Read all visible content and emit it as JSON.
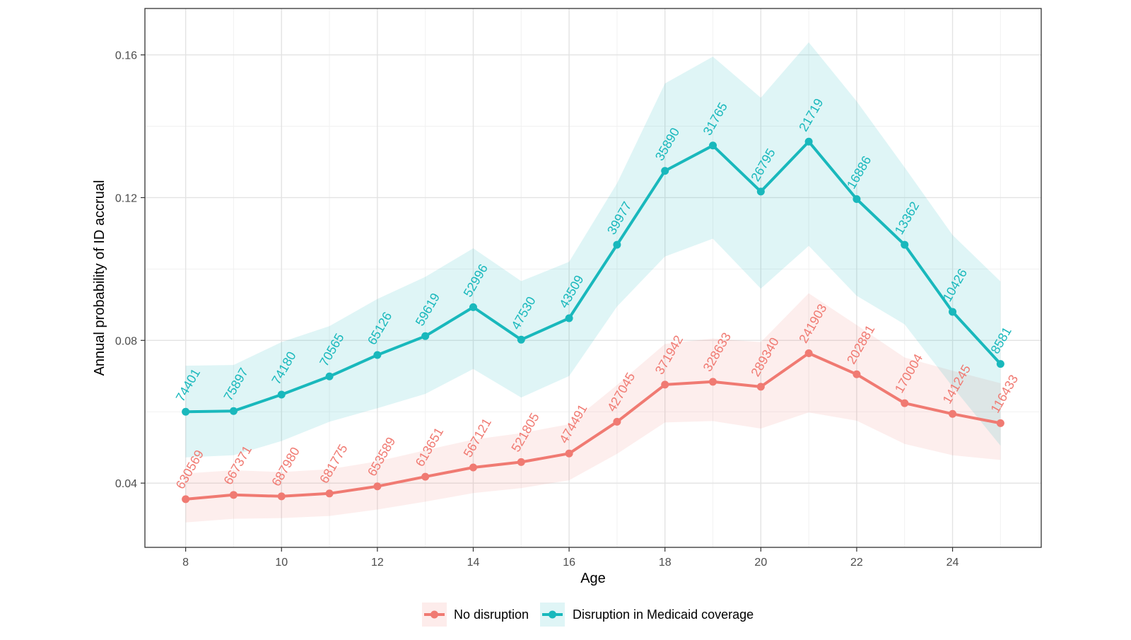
{
  "chart_data": {
    "type": "line",
    "xlabel": "Age",
    "ylabel": "Annual probability of ID accrual",
    "xlim": [
      7.15,
      25.85
    ],
    "ylim": [
      0.022,
      0.173
    ],
    "x_ticks": [
      "8",
      "10",
      "12",
      "14",
      "16",
      "18",
      "20",
      "22",
      "24"
    ],
    "x_tick_values": [
      8,
      10,
      12,
      14,
      16,
      18,
      20,
      22,
      24
    ],
    "y_ticks": [
      "0.04",
      "0.08",
      "0.12",
      "0.16"
    ],
    "y_tick_values": [
      0.04,
      0.08,
      0.12,
      0.16
    ],
    "grid": true,
    "legend_position": "bottom",
    "x": [
      8,
      9,
      10,
      11,
      12,
      13,
      14,
      15,
      16,
      17,
      18,
      19,
      20,
      21,
      22,
      23,
      24,
      25
    ],
    "series": [
      {
        "name": "No disruption",
        "color": "#F07A72",
        "values": [
          0.0355,
          0.0367,
          0.0363,
          0.0371,
          0.0391,
          0.0418,
          0.0444,
          0.0459,
          0.0483,
          0.0572,
          0.0676,
          0.0684,
          0.067,
          0.0764,
          0.0705,
          0.0624,
          0.0594,
          0.0568
        ],
        "lower": [
          0.029,
          0.03,
          0.0302,
          0.0308,
          0.0326,
          0.0348,
          0.0372,
          0.0386,
          0.0408,
          0.0482,
          0.057,
          0.0574,
          0.0553,
          0.0598,
          0.0575,
          0.051,
          0.0478,
          0.0465
        ],
        "upper": [
          0.0427,
          0.0436,
          0.0431,
          0.0439,
          0.0461,
          0.0492,
          0.0522,
          0.054,
          0.0565,
          0.0675,
          0.079,
          0.0805,
          0.0795,
          0.0932,
          0.0843,
          0.0752,
          0.0715,
          0.068
        ],
        "labels": [
          "630569",
          "667371",
          "687980",
          "681775",
          "653589",
          "613651",
          "567121",
          "521805",
          "474491",
          "427045",
          "371942",
          "328633",
          "289340",
          "241903",
          "202881",
          "170004",
          "141245",
          "116433"
        ]
      },
      {
        "name": "Disruption in Medicaid coverage",
        "color": "#19B8BC",
        "values": [
          0.06,
          0.0602,
          0.0648,
          0.0699,
          0.0759,
          0.0812,
          0.0893,
          0.0802,
          0.0862,
          0.1068,
          0.1275,
          0.1346,
          0.1217,
          0.1357,
          0.1196,
          0.1068,
          0.088,
          0.0734
        ],
        "lower": [
          0.0472,
          0.0478,
          0.0518,
          0.0572,
          0.061,
          0.065,
          0.072,
          0.064,
          0.07,
          0.0895,
          0.1035,
          0.1085,
          0.0945,
          0.1065,
          0.0925,
          0.0845,
          0.067,
          0.0505
        ],
        "upper": [
          0.0729,
          0.0731,
          0.0795,
          0.084,
          0.0916,
          0.0978,
          0.1058,
          0.0966,
          0.102,
          0.124,
          0.152,
          0.1595,
          0.148,
          0.1635,
          0.147,
          0.1285,
          0.1095,
          0.0965
        ],
        "labels": [
          "74401",
          "75897",
          "74180",
          "70565",
          "65126",
          "59619",
          "52996",
          "47530",
          "43509",
          "39977",
          "35890",
          "31765",
          "26795",
          "21719",
          "16886",
          "13362",
          "10426",
          "8581"
        ]
      }
    ]
  }
}
